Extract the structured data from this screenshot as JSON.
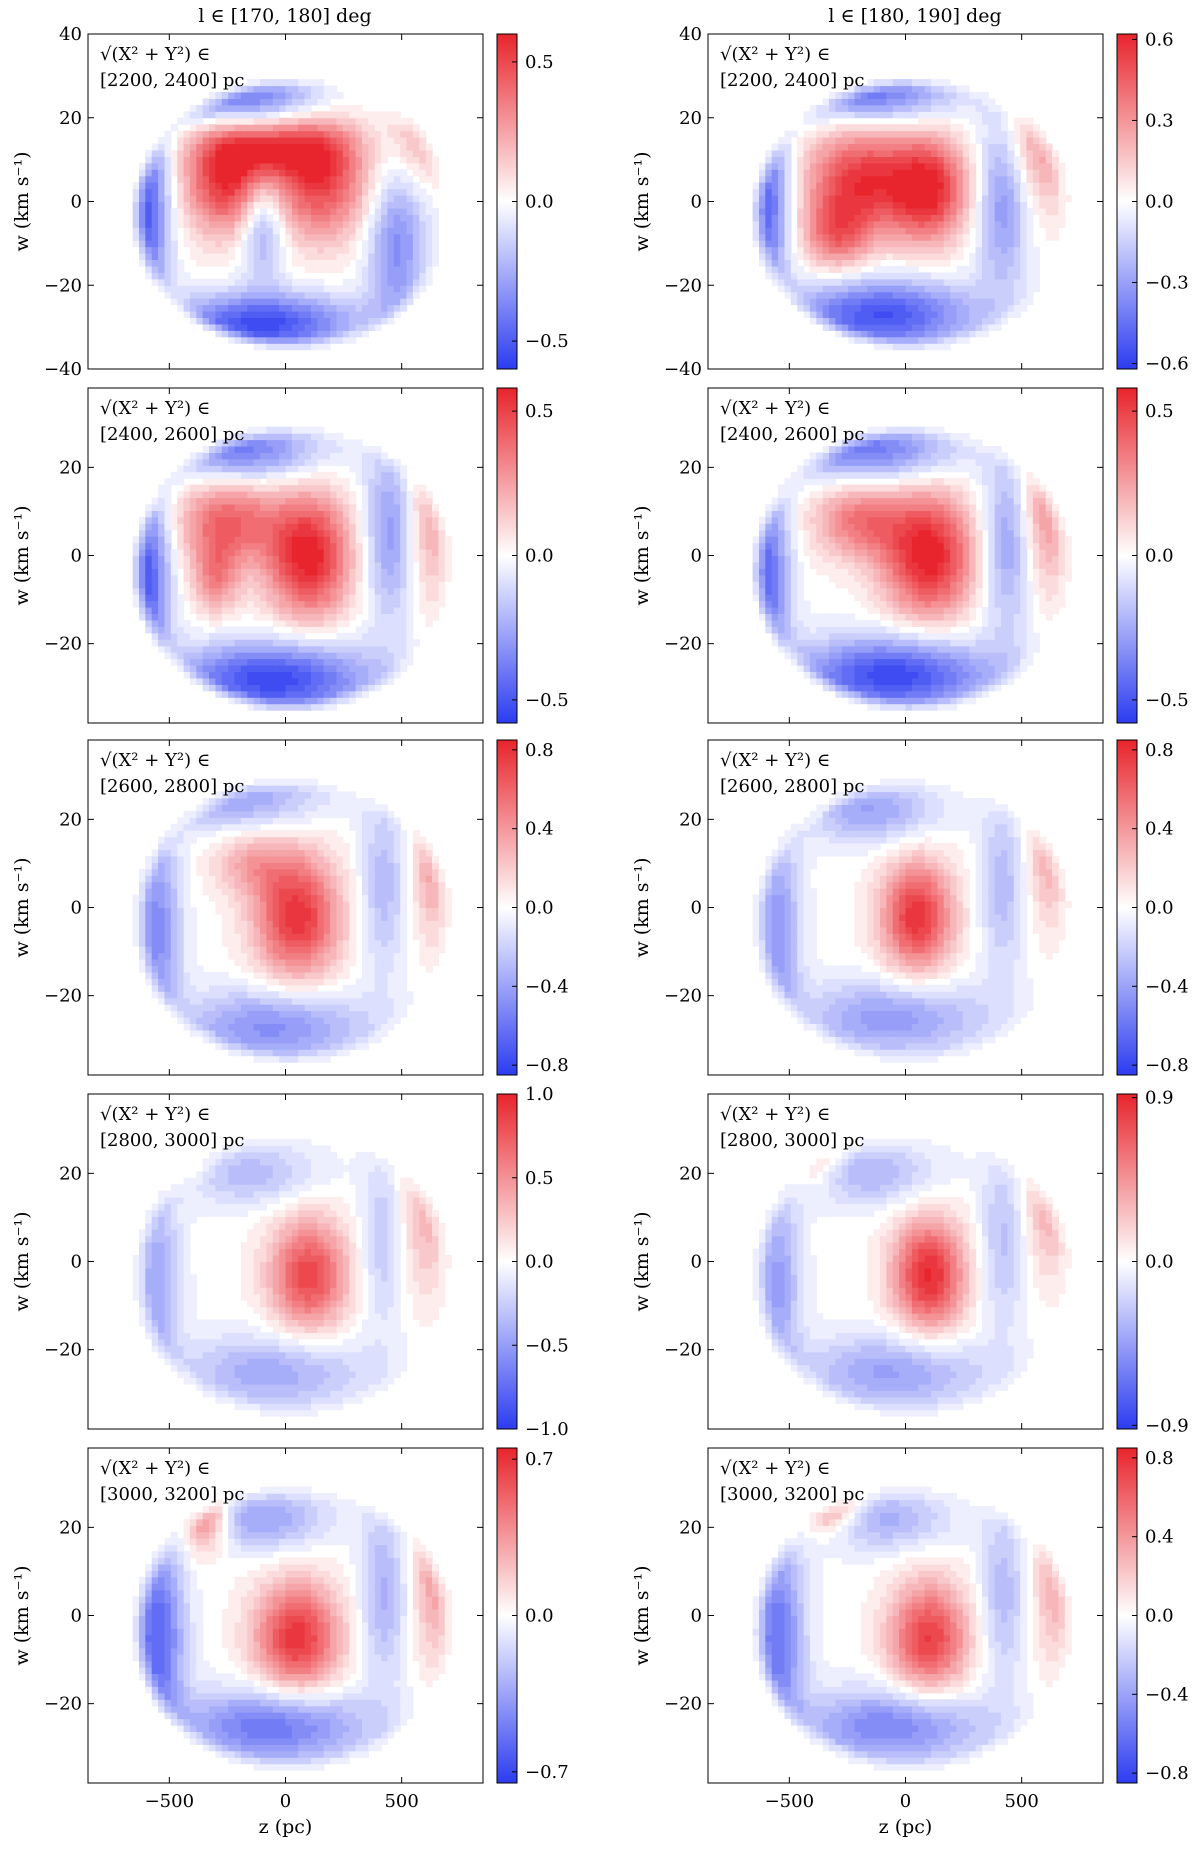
{
  "figure": {
    "column_titles": [
      "l ∈ [170, 180] deg",
      "l ∈ [180, 190] deg"
    ],
    "xlabel": "z (pc)",
    "ylabel": "w (km s⁻¹)",
    "annotation_prefix": "√(X² + Y²) ∈",
    "colors": {
      "positive": "#e8242c",
      "negative": "#2c3cf0",
      "neutral": "#ffffff"
    }
  },
  "chart_data": [
    {
      "type": "heatmap",
      "column_title": "l ∈ [170, 180] deg",
      "radius_label": "[2200, 2400] pc",
      "xlabel": "",
      "ylabel": "w (km s⁻¹)",
      "xlim": [
        -850,
        850
      ],
      "ylim": [
        -40,
        40
      ],
      "xticks": [],
      "yticks": [
        40,
        20,
        0,
        -20,
        -40
      ],
      "ytick_labels": [
        "40",
        "20",
        "0",
        "−20",
        "−40"
      ],
      "colorbar": {
        "min": -0.6,
        "max": 0.6,
        "ticks": [
          0.5,
          0.0,
          -0.5
        ],
        "tick_labels": [
          "0.5",
          "0.0",
          "−0.5"
        ]
      },
      "blobs": [
        {
          "x": -250,
          "y": 5,
          "sx": 130,
          "sy": 9,
          "a": 0.55
        },
        {
          "x": 150,
          "y": 5,
          "sx": 150,
          "sy": 10,
          "a": 0.5
        },
        {
          "x": -50,
          "y": 13,
          "sx": 200,
          "sy": 5,
          "a": 0.4
        },
        {
          "x": -600,
          "y": -2,
          "sx": 70,
          "sy": 18,
          "a": -0.5
        },
        {
          "x": -100,
          "y": -29,
          "sx": 280,
          "sy": 5,
          "a": -0.55
        },
        {
          "x": -200,
          "y": 25,
          "sx": 250,
          "sy": 5,
          "a": -0.45
        },
        {
          "x": -100,
          "y": -5,
          "sx": 70,
          "sy": 9,
          "a": -0.35
        },
        {
          "x": 480,
          "y": -10,
          "sx": 90,
          "sy": 14,
          "a": -0.35
        },
        {
          "x": 580,
          "y": 18,
          "sx": 90,
          "sy": 10,
          "a": 0.25
        }
      ]
    },
    {
      "type": "heatmap",
      "column_title": "l ∈ [180, 190] deg",
      "radius_label": "[2200, 2400] pc",
      "xlabel": "",
      "ylabel": "w (km s⁻¹)",
      "xlim": [
        -850,
        850
      ],
      "ylim": [
        -40,
        40
      ],
      "xticks": [],
      "yticks": [
        40,
        20,
        0,
        -20,
        -40
      ],
      "ytick_labels": [
        "40",
        "20",
        "0",
        "−20",
        "−40"
      ],
      "colorbar": {
        "min": -0.62,
        "max": 0.62,
        "ticks": [
          0.6,
          0.3,
          0.0,
          -0.3,
          -0.6
        ],
        "tick_labels": [
          "0.6",
          "0.3",
          "0.0",
          "−0.3",
          "−0.6"
        ]
      },
      "blobs": [
        {
          "x": -200,
          "y": 5,
          "sx": 160,
          "sy": 9,
          "a": 0.55
        },
        {
          "x": 100,
          "y": 3,
          "sx": 120,
          "sy": 9,
          "a": 0.6
        },
        {
          "x": -300,
          "y": -8,
          "sx": 100,
          "sy": 6,
          "a": 0.35
        },
        {
          "x": -600,
          "y": 0,
          "sx": 70,
          "sy": 16,
          "a": -0.5
        },
        {
          "x": -100,
          "y": -27,
          "sx": 280,
          "sy": 6,
          "a": -0.55
        },
        {
          "x": -150,
          "y": 26,
          "sx": 250,
          "sy": 5,
          "a": -0.45
        },
        {
          "x": 420,
          "y": 0,
          "sx": 80,
          "sy": 14,
          "a": -0.35
        },
        {
          "x": 580,
          "y": 15,
          "sx": 100,
          "sy": 12,
          "a": 0.3
        }
      ]
    },
    {
      "type": "heatmap",
      "column_title": "",
      "radius_label": "[2400, 2600] pc",
      "xlabel": "",
      "ylabel": "w (km s⁻¹)",
      "xlim": [
        -850,
        850
      ],
      "ylim": [
        -38,
        38
      ],
      "xticks": [],
      "yticks": [
        20,
        0,
        -20
      ],
      "ytick_labels": [
        "20",
        "0",
        "−20"
      ],
      "colorbar": {
        "min": -0.58,
        "max": 0.58,
        "ticks": [
          0.5,
          0.0,
          -0.5
        ],
        "tick_labels": [
          "0.5",
          "0.0",
          "−0.5"
        ]
      },
      "blobs": [
        {
          "x": 100,
          "y": 0,
          "sx": 130,
          "sy": 10,
          "a": 0.6
        },
        {
          "x": -250,
          "y": 8,
          "sx": 150,
          "sy": 7,
          "a": 0.4
        },
        {
          "x": -300,
          "y": -5,
          "sx": 70,
          "sy": 6,
          "a": 0.3
        },
        {
          "x": -600,
          "y": -5,
          "sx": 70,
          "sy": 16,
          "a": -0.5
        },
        {
          "x": -50,
          "y": -28,
          "sx": 300,
          "sy": 6,
          "a": -0.55
        },
        {
          "x": -200,
          "y": 24,
          "sx": 250,
          "sy": 5,
          "a": -0.4
        },
        {
          "x": 450,
          "y": 5,
          "sx": 80,
          "sy": 14,
          "a": -0.3
        },
        {
          "x": 620,
          "y": 10,
          "sx": 70,
          "sy": 14,
          "a": 0.25
        }
      ]
    },
    {
      "type": "heatmap",
      "column_title": "",
      "radius_label": "[2400, 2600] pc",
      "xlabel": "",
      "ylabel": "w (km s⁻¹)",
      "xlim": [
        -850,
        850
      ],
      "ylim": [
        -38,
        38
      ],
      "xticks": [],
      "yticks": [
        20,
        0,
        -20
      ],
      "ytick_labels": [
        "20",
        "0",
        "−20"
      ],
      "colorbar": {
        "min": -0.58,
        "max": 0.58,
        "ticks": [
          0.5,
          0.0,
          -0.5
        ],
        "tick_labels": [
          "0.5",
          "0.0",
          "−0.5"
        ]
      },
      "blobs": [
        {
          "x": 100,
          "y": 0,
          "sx": 140,
          "sy": 10,
          "a": 0.6
        },
        {
          "x": -200,
          "y": 8,
          "sx": 140,
          "sy": 6,
          "a": 0.35
        },
        {
          "x": -600,
          "y": -5,
          "sx": 70,
          "sy": 16,
          "a": -0.45
        },
        {
          "x": -50,
          "y": -27,
          "sx": 300,
          "sy": 6,
          "a": -0.55
        },
        {
          "x": -150,
          "y": 24,
          "sx": 250,
          "sy": 5,
          "a": -0.4
        },
        {
          "x": 440,
          "y": 3,
          "sx": 80,
          "sy": 14,
          "a": -0.3
        },
        {
          "x": 600,
          "y": 12,
          "sx": 80,
          "sy": 14,
          "a": 0.3
        }
      ]
    },
    {
      "type": "heatmap",
      "column_title": "",
      "radius_label": "[2600, 2800] pc",
      "xlabel": "",
      "ylabel": "w (km s⁻¹)",
      "xlim": [
        -850,
        850
      ],
      "ylim": [
        -38,
        38
      ],
      "xticks": [],
      "yticks": [
        20,
        0,
        -20
      ],
      "ytick_labels": [
        "20",
        "0",
        "−20"
      ],
      "colorbar": {
        "min": -0.85,
        "max": 0.85,
        "ticks": [
          0.8,
          0.4,
          0.0,
          -0.4,
          -0.8
        ],
        "tick_labels": [
          "0.8",
          "0.4",
          "0.0",
          "−0.4",
          "−0.8"
        ]
      },
      "blobs": [
        {
          "x": 50,
          "y": -2,
          "sx": 130,
          "sy": 10,
          "a": 0.8
        },
        {
          "x": -150,
          "y": 10,
          "sx": 120,
          "sy": 5,
          "a": 0.3
        },
        {
          "x": -550,
          "y": -5,
          "sx": 70,
          "sy": 16,
          "a": -0.5
        },
        {
          "x": -50,
          "y": -27,
          "sx": 280,
          "sy": 6,
          "a": -0.5
        },
        {
          "x": -200,
          "y": 25,
          "sx": 250,
          "sy": 5,
          "a": -0.4
        },
        {
          "x": 420,
          "y": 5,
          "sx": 70,
          "sy": 14,
          "a": -0.3
        },
        {
          "x": 630,
          "y": 10,
          "sx": 60,
          "sy": 12,
          "a": 0.35
        }
      ]
    },
    {
      "type": "heatmap",
      "column_title": "",
      "radius_label": "[2600, 2800] pc",
      "xlabel": "",
      "ylabel": "w (km s⁻¹)",
      "xlim": [
        -850,
        850
      ],
      "ylim": [
        -38,
        38
      ],
      "xticks": [],
      "yticks": [
        20,
        0,
        -20
      ],
      "ytick_labels": [
        "20",
        "0",
        "−20"
      ],
      "colorbar": {
        "min": -0.85,
        "max": 0.85,
        "ticks": [
          0.8,
          0.4,
          0.0,
          -0.4,
          -0.8
        ],
        "tick_labels": [
          "0.8",
          "0.4",
          "0.0",
          "−0.4",
          "−0.8"
        ]
      },
      "blobs": [
        {
          "x": 50,
          "y": -2,
          "sx": 110,
          "sy": 9,
          "a": 0.8
        },
        {
          "x": -450,
          "y": 27,
          "sx": 80,
          "sy": 4,
          "a": 0.3
        },
        {
          "x": -550,
          "y": -5,
          "sx": 70,
          "sy": 16,
          "a": -0.45
        },
        {
          "x": -50,
          "y": -25,
          "sx": 280,
          "sy": 6,
          "a": -0.45
        },
        {
          "x": -150,
          "y": 22,
          "sx": 200,
          "sy": 5,
          "a": -0.4
        },
        {
          "x": 420,
          "y": 5,
          "sx": 70,
          "sy": 14,
          "a": -0.3
        },
        {
          "x": 620,
          "y": 14,
          "sx": 70,
          "sy": 12,
          "a": 0.35
        }
      ]
    },
    {
      "type": "heatmap",
      "column_title": "",
      "radius_label": "[2800, 3000] pc",
      "xlabel": "",
      "ylabel": "w (km s⁻¹)",
      "xlim": [
        -850,
        850
      ],
      "ylim": [
        -38,
        38
      ],
      "xticks": [],
      "yticks": [
        20,
        0,
        -20
      ],
      "ytick_labels": [
        "20",
        "0",
        "−20"
      ],
      "colorbar": {
        "min": -1.0,
        "max": 1.0,
        "ticks": [
          1.0,
          0.5,
          0.0,
          -0.5,
          -1.0
        ],
        "tick_labels": [
          "1.0",
          "0.5",
          "0.0",
          "−0.5",
          "−1.0"
        ]
      },
      "blobs": [
        {
          "x": 100,
          "y": -3,
          "sx": 120,
          "sy": 9,
          "a": 0.85
        },
        {
          "x": -450,
          "y": 24,
          "sx": 80,
          "sy": 4,
          "a": 0.3
        },
        {
          "x": -550,
          "y": -5,
          "sx": 70,
          "sy": 16,
          "a": -0.45
        },
        {
          "x": -50,
          "y": -25,
          "sx": 280,
          "sy": 6,
          "a": -0.45
        },
        {
          "x": -150,
          "y": 20,
          "sx": 200,
          "sy": 5,
          "a": -0.35
        },
        {
          "x": 420,
          "y": 5,
          "sx": 70,
          "sy": 14,
          "a": -0.3
        },
        {
          "x": 600,
          "y": 12,
          "sx": 80,
          "sy": 14,
          "a": 0.35
        }
      ]
    },
    {
      "type": "heatmap",
      "column_title": "",
      "radius_label": "[2800, 3000] pc",
      "xlabel": "",
      "ylabel": "w (km s⁻¹)",
      "xlim": [
        -850,
        850
      ],
      "ylim": [
        -38,
        38
      ],
      "xticks": [],
      "yticks": [
        20,
        0,
        -20
      ],
      "ytick_labels": [
        "20",
        "0",
        "−20"
      ],
      "colorbar": {
        "min": -0.92,
        "max": 0.92,
        "ticks": [
          0.9,
          0.0,
          -0.9
        ],
        "tick_labels": [
          "0.9",
          "0.0",
          "−0.9"
        ]
      },
      "blobs": [
        {
          "x": 100,
          "y": -3,
          "sx": 110,
          "sy": 9,
          "a": 0.9
        },
        {
          "x": -400,
          "y": 25,
          "sx": 80,
          "sy": 5,
          "a": 0.4
        },
        {
          "x": -550,
          "y": -5,
          "sx": 70,
          "sy": 16,
          "a": -0.45
        },
        {
          "x": -50,
          "y": -25,
          "sx": 280,
          "sy": 6,
          "a": -0.45
        },
        {
          "x": -150,
          "y": 20,
          "sx": 200,
          "sy": 5,
          "a": -0.35
        },
        {
          "x": 420,
          "y": 5,
          "sx": 70,
          "sy": 14,
          "a": -0.3
        },
        {
          "x": 620,
          "y": 14,
          "sx": 80,
          "sy": 12,
          "a": 0.35
        }
      ]
    },
    {
      "type": "heatmap",
      "column_title": "",
      "radius_label": "[3000, 3200] pc",
      "xlabel": "z (pc)",
      "ylabel": "w (km s⁻¹)",
      "xlim": [
        -850,
        850
      ],
      "ylim": [
        -38,
        38
      ],
      "xticks": [
        -500,
        0,
        500
      ],
      "xtick_labels": [
        "−500",
        "0",
        "500"
      ],
      "yticks": [
        20,
        0,
        -20
      ],
      "ytick_labels": [
        "20",
        "0",
        "−20"
      ],
      "colorbar": {
        "min": -0.75,
        "max": 0.75,
        "ticks": [
          0.7,
          0.0,
          -0.7
        ],
        "tick_labels": [
          "0.7",
          "0.0",
          "−0.7"
        ]
      },
      "blobs": [
        {
          "x": 50,
          "y": -5,
          "sx": 130,
          "sy": 9,
          "a": 0.7
        },
        {
          "x": -350,
          "y": 24,
          "sx": 70,
          "sy": 6,
          "a": 0.6
        },
        {
          "x": -550,
          "y": -5,
          "sx": 80,
          "sy": 16,
          "a": -0.6
        },
        {
          "x": -50,
          "y": -25,
          "sx": 280,
          "sy": 6,
          "a": -0.55
        },
        {
          "x": -100,
          "y": 22,
          "sx": 200,
          "sy": 5,
          "a": -0.35
        },
        {
          "x": 420,
          "y": 5,
          "sx": 70,
          "sy": 14,
          "a": -0.3
        },
        {
          "x": 650,
          "y": 10,
          "sx": 70,
          "sy": 14,
          "a": 0.35
        }
      ]
    },
    {
      "type": "heatmap",
      "column_title": "",
      "radius_label": "[3000, 3200] pc",
      "xlabel": "z (pc)",
      "ylabel": "w (km s⁻¹)",
      "xlim": [
        -850,
        850
      ],
      "ylim": [
        -38,
        38
      ],
      "xticks": [
        -500,
        0,
        500
      ],
      "xtick_labels": [
        "−500",
        "0",
        "500"
      ],
      "yticks": [
        20,
        0,
        -20
      ],
      "ytick_labels": [
        "20",
        "0",
        "−20"
      ],
      "colorbar": {
        "min": -0.85,
        "max": 0.85,
        "ticks": [
          0.8,
          0.4,
          0.0,
          -0.4,
          -0.8
        ],
        "tick_labels": [
          "0.8",
          "0.4",
          "0.0",
          "−0.4",
          "−0.8"
        ]
      },
      "blobs": [
        {
          "x": 100,
          "y": -5,
          "sx": 120,
          "sy": 9,
          "a": 0.75
        },
        {
          "x": -350,
          "y": 25,
          "sx": 100,
          "sy": 4,
          "a": 0.6
        },
        {
          "x": -550,
          "y": -5,
          "sx": 80,
          "sy": 16,
          "a": -0.6
        },
        {
          "x": -50,
          "y": -25,
          "sx": 280,
          "sy": 6,
          "a": -0.55
        },
        {
          "x": -100,
          "y": 22,
          "sx": 200,
          "sy": 5,
          "a": -0.35
        },
        {
          "x": 420,
          "y": 5,
          "sx": 70,
          "sy": 14,
          "a": -0.3
        },
        {
          "x": 650,
          "y": 10,
          "sx": 70,
          "sy": 14,
          "a": 0.35
        }
      ]
    }
  ]
}
